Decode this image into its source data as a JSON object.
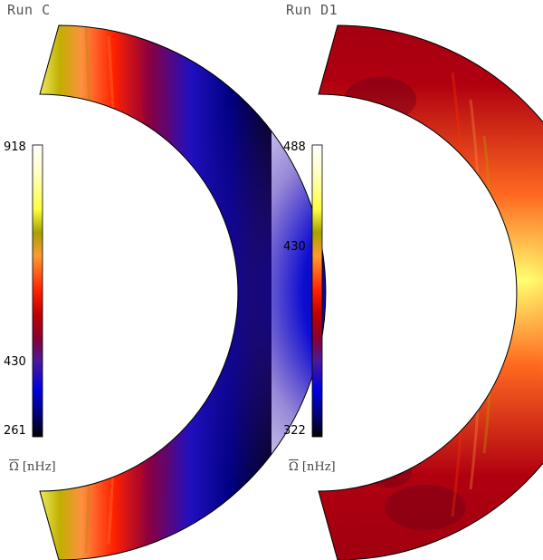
{
  "panels": [
    {
      "title": "Run C",
      "colorbar": {
        "max": "918",
        "mid": "430",
        "min": "261",
        "label_symbol": "Ω",
        "label_unit": "[nHz]"
      }
    },
    {
      "title": "Run D1",
      "colorbar": {
        "max": "488",
        "mid": "430",
        "min": "322",
        "label_symbol": "Ω",
        "label_unit": "[nHz]"
      }
    }
  ],
  "colormap": [
    "#000000",
    "#1a0a60",
    "#0000c8",
    "#4a1a9a",
    "#9a1060",
    "#c00000",
    "#ff2000",
    "#ff7a00",
    "#ffb070",
    "#b8b800",
    "#ffff40",
    "#ffffd0",
    "#ffffff"
  ]
}
